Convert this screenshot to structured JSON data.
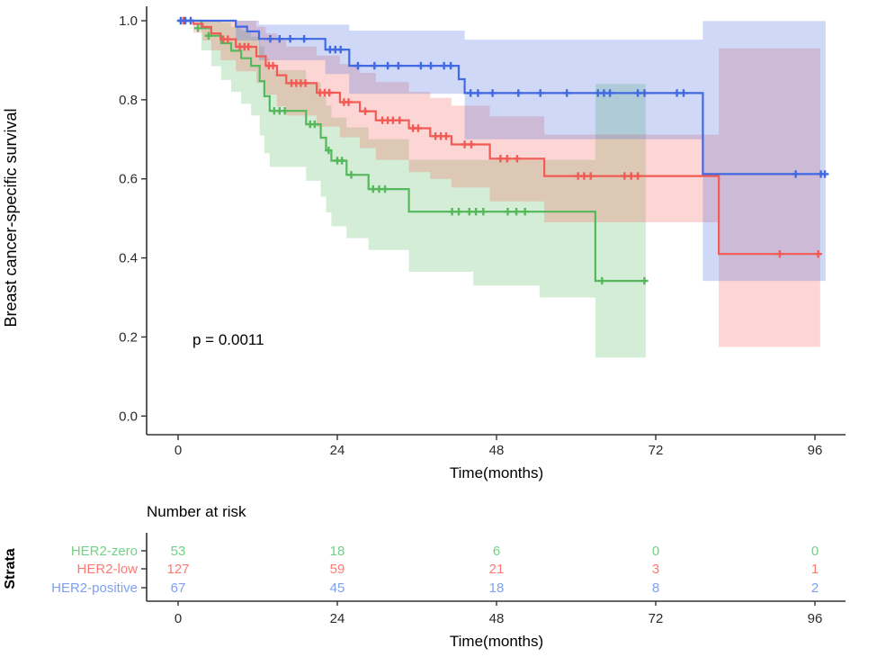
{
  "chart_data": {
    "type": "line",
    "subtype": "kaplan-meier-survival",
    "title": "",
    "xlabel": "Time(months)",
    "ylabel": "Breast cancer-specific survival",
    "pvalue": "p = 0.0011",
    "xlim": [
      0,
      99
    ],
    "ylim": [
      0,
      1
    ],
    "xticks": [
      0,
      24,
      48,
      72,
      96
    ],
    "yticks": [
      [
        "1.0",
        1.0
      ],
      [
        "0.8",
        0.8
      ],
      [
        "0.6",
        0.6
      ],
      [
        "0.4",
        0.4
      ],
      [
        "0.2",
        0.2
      ],
      [
        "0.0",
        0.0
      ]
    ],
    "grid": "off",
    "legend_position": "none",
    "band_opacity": 0.25,
    "axis_color": "#333333",
    "risk_table": {
      "title": "Number at risk",
      "axis_label": "Strata",
      "xlabel": "Time(months)",
      "times": [
        0,
        24,
        48,
        72,
        96
      ]
    },
    "series": [
      {
        "name": "HER2-zero",
        "color": "#55B85C",
        "label_color": "#72D283",
        "risk": [
          53,
          18,
          6,
          0,
          0
        ],
        "end": 70.5,
        "steps": [
          [
            0,
            1.0
          ],
          [
            3.5,
            0.981
          ],
          [
            5.0,
            0.962
          ],
          [
            6.5,
            0.943
          ],
          [
            8.0,
            0.924
          ],
          [
            9.5,
            0.905
          ],
          [
            11.0,
            0.886
          ],
          [
            12.3,
            0.847
          ],
          [
            13.0,
            0.809
          ],
          [
            13.8,
            0.772
          ],
          [
            19.3,
            0.738
          ],
          [
            21.5,
            0.704
          ],
          [
            22.3,
            0.672
          ],
          [
            23.1,
            0.646
          ],
          [
            25.4,
            0.61
          ],
          [
            28.7,
            0.574
          ],
          [
            34.8,
            0.517
          ],
          [
            62.9,
            0.342
          ]
        ],
        "censors": [
          [
            3.0,
            0.981
          ],
          [
            4.6,
            0.962
          ],
          [
            14.5,
            0.772
          ],
          [
            15.3,
            0.772
          ],
          [
            16.1,
            0.772
          ],
          [
            19.9,
            0.738
          ],
          [
            20.6,
            0.738
          ],
          [
            22.7,
            0.672
          ],
          [
            24.0,
            0.646
          ],
          [
            24.7,
            0.646
          ],
          [
            26.1,
            0.61
          ],
          [
            29.4,
            0.574
          ],
          [
            30.3,
            0.574
          ],
          [
            31.2,
            0.574
          ],
          [
            41.3,
            0.517
          ],
          [
            42.3,
            0.517
          ],
          [
            43.9,
            0.517
          ],
          [
            44.9,
            0.517
          ],
          [
            46.0,
            0.517
          ],
          [
            49.7,
            0.517
          ],
          [
            51.0,
            0.517
          ],
          [
            52.3,
            0.517
          ],
          [
            63.9,
            0.342
          ],
          [
            70.3,
            0.342
          ]
        ],
        "ci_upper": [
          [
            0,
            1.0
          ],
          [
            6.5,
            0.995
          ],
          [
            8.0,
            0.985
          ],
          [
            9.5,
            0.975
          ],
          [
            11.0,
            0.96
          ],
          [
            12.3,
            0.935
          ],
          [
            13.0,
            0.905
          ],
          [
            13.8,
            0.875
          ],
          [
            19.3,
            0.845
          ],
          [
            21.5,
            0.81
          ],
          [
            22.3,
            0.785
          ],
          [
            23.1,
            0.755
          ],
          [
            25.4,
            0.73
          ],
          [
            28.7,
            0.7
          ],
          [
            34.8,
            0.648
          ],
          [
            62.9,
            0.84
          ]
        ],
        "ci_lower": [
          [
            0,
            1.0
          ],
          [
            3.5,
            0.925
          ],
          [
            5.0,
            0.885
          ],
          [
            6.5,
            0.85
          ],
          [
            8.0,
            0.82
          ],
          [
            9.5,
            0.79
          ],
          [
            11.0,
            0.76
          ],
          [
            12.3,
            0.71
          ],
          [
            13.0,
            0.665
          ],
          [
            13.8,
            0.63
          ],
          [
            19.3,
            0.595
          ],
          [
            21.5,
            0.555
          ],
          [
            22.3,
            0.515
          ],
          [
            23.1,
            0.48
          ],
          [
            25.4,
            0.45
          ],
          [
            28.7,
            0.42
          ],
          [
            34.8,
            0.365
          ],
          [
            44.5,
            0.33
          ],
          [
            54.5,
            0.3
          ],
          [
            62.9,
            0.148
          ]
        ]
      },
      {
        "name": "HER2-low",
        "color": "#F25B55",
        "label_color": "#FB7B74",
        "risk": [
          127,
          59,
          21,
          3,
          1
        ],
        "end": 96.8,
        "steps": [
          [
            0,
            1.0
          ],
          [
            2.3,
            0.992
          ],
          [
            3.7,
            0.984
          ],
          [
            5.0,
            0.968
          ],
          [
            6.4,
            0.953
          ],
          [
            8.7,
            0.934
          ],
          [
            11.8,
            0.91
          ],
          [
            13.2,
            0.886
          ],
          [
            14.9,
            0.862
          ],
          [
            16.3,
            0.842
          ],
          [
            20.9,
            0.818
          ],
          [
            24.4,
            0.794
          ],
          [
            27.4,
            0.771
          ],
          [
            29.8,
            0.748
          ],
          [
            34.8,
            0.728
          ],
          [
            38.0,
            0.708
          ],
          [
            41.2,
            0.687
          ],
          [
            47.0,
            0.651
          ],
          [
            55.2,
            0.607
          ],
          [
            81.5,
            0.41
          ]
        ],
        "censors": [
          [
            0.8,
            1.0
          ],
          [
            6.8,
            0.953
          ],
          [
            7.5,
            0.953
          ],
          [
            9.3,
            0.934
          ],
          [
            10.0,
            0.934
          ],
          [
            10.6,
            0.934
          ],
          [
            13.7,
            0.886
          ],
          [
            14.3,
            0.886
          ],
          [
            17.1,
            0.842
          ],
          [
            17.8,
            0.842
          ],
          [
            18.5,
            0.842
          ],
          [
            19.2,
            0.842
          ],
          [
            21.4,
            0.818
          ],
          [
            22.1,
            0.818
          ],
          [
            22.8,
            0.818
          ],
          [
            25.0,
            0.794
          ],
          [
            25.7,
            0.794
          ],
          [
            28.2,
            0.771
          ],
          [
            30.8,
            0.748
          ],
          [
            31.6,
            0.748
          ],
          [
            32.4,
            0.748
          ],
          [
            33.4,
            0.748
          ],
          [
            35.4,
            0.728
          ],
          [
            36.2,
            0.728
          ],
          [
            38.8,
            0.708
          ],
          [
            39.6,
            0.708
          ],
          [
            40.4,
            0.708
          ],
          [
            43.2,
            0.687
          ],
          [
            44.2,
            0.687
          ],
          [
            48.6,
            0.651
          ],
          [
            49.6,
            0.651
          ],
          [
            51.1,
            0.651
          ],
          [
            60.3,
            0.607
          ],
          [
            61.2,
            0.607
          ],
          [
            62.2,
            0.607
          ],
          [
            67.3,
            0.607
          ],
          [
            68.3,
            0.607
          ],
          [
            69.3,
            0.607
          ],
          [
            90.7,
            0.41
          ],
          [
            96.5,
            0.41
          ]
        ],
        "ci_upper": [
          [
            0,
            1.0
          ],
          [
            11.8,
            0.985
          ],
          [
            13.2,
            0.968
          ],
          [
            14.9,
            0.952
          ],
          [
            16.3,
            0.935
          ],
          [
            20.9,
            0.912
          ],
          [
            24.4,
            0.89
          ],
          [
            27.4,
            0.868
          ],
          [
            29.8,
            0.845
          ],
          [
            34.8,
            0.82
          ],
          [
            38.0,
            0.805
          ],
          [
            41.2,
            0.785
          ],
          [
            47.0,
            0.758
          ],
          [
            55.2,
            0.712
          ],
          [
            81.5,
            0.93
          ]
        ],
        "ci_lower": [
          [
            0,
            1.0
          ],
          [
            2.3,
            0.97
          ],
          [
            3.7,
            0.95
          ],
          [
            5.0,
            0.925
          ],
          [
            6.4,
            0.9
          ],
          [
            8.7,
            0.872
          ],
          [
            11.8,
            0.843
          ],
          [
            13.2,
            0.813
          ],
          [
            14.9,
            0.783
          ],
          [
            16.3,
            0.76
          ],
          [
            20.9,
            0.732
          ],
          [
            24.4,
            0.705
          ],
          [
            27.4,
            0.678
          ],
          [
            29.8,
            0.648
          ],
          [
            34.8,
            0.617
          ],
          [
            38.0,
            0.6
          ],
          [
            41.2,
            0.578
          ],
          [
            47.0,
            0.543
          ],
          [
            55.2,
            0.49
          ],
          [
            81.5,
            0.175
          ]
        ]
      },
      {
        "name": "HER2-positive",
        "color": "#4169E1",
        "label_color": "#7E9FF4",
        "risk": [
          67,
          45,
          18,
          8,
          2
        ],
        "end": 97.6,
        "steps": [
          [
            0,
            1.0
          ],
          [
            8.7,
            0.985
          ],
          [
            10.4,
            0.973
          ],
          [
            12.2,
            0.954
          ],
          [
            22.2,
            0.927
          ],
          [
            25.8,
            0.886
          ],
          [
            42.3,
            0.852
          ],
          [
            43.2,
            0.817
          ],
          [
            79.1,
            0.612
          ]
        ],
        "censors": [
          [
            0.4,
            1.0
          ],
          [
            1.1,
            1.0
          ],
          [
            1.9,
            1.0
          ],
          [
            13.9,
            0.954
          ],
          [
            15.3,
            0.954
          ],
          [
            16.9,
            0.954
          ],
          [
            19.0,
            0.954
          ],
          [
            22.9,
            0.927
          ],
          [
            23.7,
            0.927
          ],
          [
            24.5,
            0.927
          ],
          [
            27.1,
            0.886
          ],
          [
            29.6,
            0.886
          ],
          [
            31.6,
            0.886
          ],
          [
            33.2,
            0.886
          ],
          [
            36.6,
            0.886
          ],
          [
            38.1,
            0.886
          ],
          [
            40.1,
            0.886
          ],
          [
            41.1,
            0.886
          ],
          [
            44.1,
            0.817
          ],
          [
            45.2,
            0.817
          ],
          [
            47.4,
            0.817
          ],
          [
            51.3,
            0.817
          ],
          [
            54.6,
            0.817
          ],
          [
            58.6,
            0.817
          ],
          [
            63.3,
            0.817
          ],
          [
            64.2,
            0.817
          ],
          [
            65.1,
            0.817
          ],
          [
            69.3,
            0.817
          ],
          [
            70.3,
            0.817
          ],
          [
            75.2,
            0.817
          ],
          [
            76.2,
            0.817
          ],
          [
            93.1,
            0.612
          ],
          [
            96.9,
            0.612
          ],
          [
            97.5,
            0.612
          ]
        ],
        "ci_upper": [
          [
            0,
            1.0
          ],
          [
            12.2,
            0.99
          ],
          [
            25.8,
            0.975
          ],
          [
            43.2,
            0.952
          ],
          [
            79.1,
            0.999
          ]
        ],
        "ci_lower": [
          [
            0,
            1.0
          ],
          [
            8.7,
            0.95
          ],
          [
            12.2,
            0.9
          ],
          [
            22.2,
            0.865
          ],
          [
            25.8,
            0.815
          ],
          [
            43.2,
            0.7
          ],
          [
            79.1,
            0.342
          ]
        ]
      }
    ]
  }
}
